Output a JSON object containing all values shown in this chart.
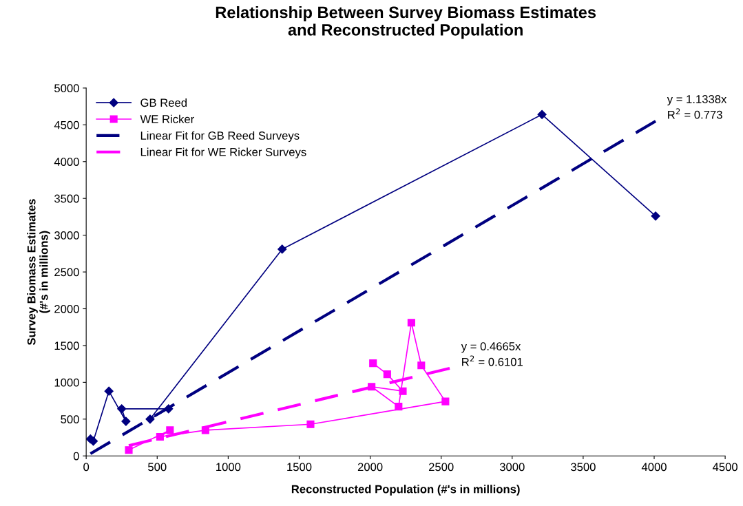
{
  "chart_data": {
    "type": "line",
    "title": "Relationship Between Survey Biomass Estimates\nand Reconstructed Population",
    "xlabel": "Reconstructed Population (#'s in millions)",
    "ylabel": "Survey Biomass Estimates\n(#'s in millions)",
    "xlim": [
      0,
      4500
    ],
    "xticks": [
      0,
      500,
      1000,
      1500,
      2000,
      2500,
      3000,
      3500,
      4000,
      4500
    ],
    "ylim": [
      0,
      5000
    ],
    "yticks": [
      0,
      500,
      1000,
      1500,
      2000,
      2500,
      3000,
      3500,
      4000,
      4500,
      5000
    ],
    "grid": false,
    "legend": "top left",
    "series": [
      {
        "name": "GB Reed",
        "color": "#000080",
        "marker": "diamond",
        "line_style": "solid",
        "x": [
          30,
          50,
          160,
          280,
          250,
          580,
          450,
          1380,
          3210,
          4010
        ],
        "values": [
          230,
          200,
          880,
          470,
          640,
          640,
          500,
          2810,
          4640,
          3260
        ]
      },
      {
        "name": "WE Ricker",
        "color": "#ff00ff",
        "marker": "square",
        "line_style": "solid",
        "x": [
          300,
          590,
          520,
          840,
          1580,
          2530,
          2360,
          2290,
          2200,
          2010,
          2230,
          2120,
          2020
        ],
        "values": [
          80,
          350,
          260,
          350,
          430,
          740,
          1230,
          1810,
          670,
          940,
          880,
          1110,
          1260
        ]
      },
      {
        "name": "Linear Fit for GB Reed Surveys",
        "color": "#000080",
        "marker": "none",
        "line_style": "dashed",
        "x": [
          30,
          4010
        ],
        "values": [
          30,
          4550
        ]
      },
      {
        "name": "Linear Fit for WE Ricker Surveys",
        "color": "#ff00ff",
        "marker": "none",
        "line_style": "dashed",
        "x": [
          300,
          2560
        ],
        "values": [
          140,
          1190
        ]
      }
    ],
    "annotations": [
      {
        "text": "y = 1.1338x\nR$^{2}$ = 0.773",
        "x": 4010,
        "y": 4550
      },
      {
        "text": "y = 0.4665x\nR$^{2}$ = 0.6101",
        "x": 2560,
        "y": 1190
      }
    ]
  }
}
